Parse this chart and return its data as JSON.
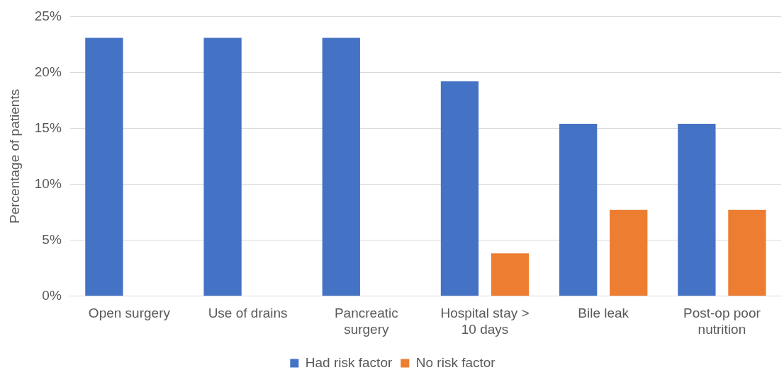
{
  "chart_data": {
    "type": "bar",
    "categories": [
      "Open surgery",
      "Use of drains",
      "Pancreatic surgery",
      "Hospital stay > 10 days",
      "Bile leak",
      "Post-op poor nutrition"
    ],
    "series": [
      {
        "name": "Had risk factor",
        "color": "#4472c4",
        "values": [
          23.1,
          23.1,
          23.1,
          19.2,
          15.4,
          15.4
        ]
      },
      {
        "name": "No risk factor",
        "color": "#ed7d31",
        "values": [
          0,
          0,
          0,
          3.8,
          7.7,
          7.7
        ]
      }
    ],
    "ylabel": "Percentage of patients",
    "ylim": [
      0,
      25
    ],
    "yticks": [
      {
        "value": 0,
        "label": "0%"
      },
      {
        "value": 5,
        "label": "5%"
      },
      {
        "value": 10,
        "label": "10%"
      },
      {
        "value": 15,
        "label": "15%"
      },
      {
        "value": 20,
        "label": "20%"
      },
      {
        "value": 25,
        "label": "25%"
      }
    ],
    "grid": "y",
    "legend": "bottom"
  }
}
